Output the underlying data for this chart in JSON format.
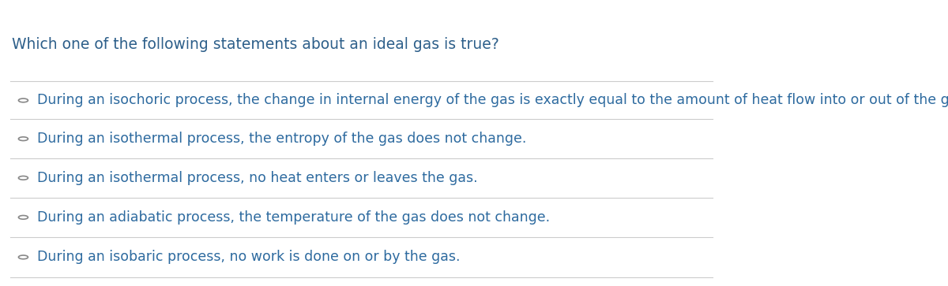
{
  "background_color": "#ffffff",
  "question": "Which one of the following statements about an ideal gas is true?",
  "question_color": "#2d5f8a",
  "question_fontsize": 13.5,
  "options": [
    "During an isochoric process, the change in internal energy of the gas is exactly equal to the amount of heat flow into or out of the gas",
    "During an isothermal process, the entropy of the gas does not change.",
    "During an isothermal process, no heat enters or leaves the gas.",
    "During an adiabatic process, the temperature of the gas does not change.",
    "During an isobaric process, no work is done on or by the gas."
  ],
  "option_color": "#2d6a9f",
  "option_fontsize": 12.5,
  "divider_color": "#cccccc",
  "circle_color": "#888888"
}
